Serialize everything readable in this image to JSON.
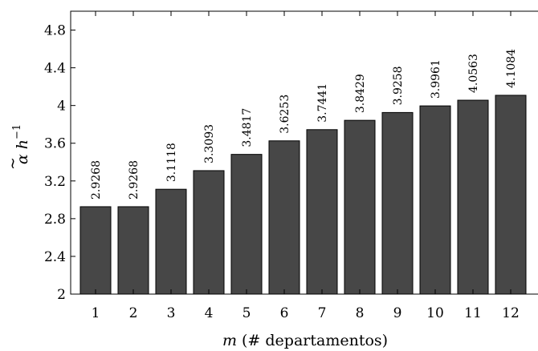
{
  "chart_data": {
    "type": "bar",
    "categories": [
      "1",
      "2",
      "3",
      "4",
      "5",
      "6",
      "7",
      "8",
      "9",
      "10",
      "11",
      "12"
    ],
    "values": [
      2.9268,
      2.9268,
      3.1118,
      3.3093,
      3.4817,
      3.6253,
      3.7441,
      3.8429,
      3.9258,
      3.9961,
      4.0563,
      4.1084
    ],
    "value_labels": [
      "2.9268",
      "2.9268",
      "3.1118",
      "3.3093",
      "3.4817",
      "3.6253",
      "3.7441",
      "3.8429",
      "3.9258",
      "3.9961",
      "4.0563",
      "4.1084"
    ],
    "title": "",
    "xlabel_italic": "m",
    "xlabel_rest": " (# departamentos)",
    "ylabel_alpha": "α",
    "ylabel_tilde": "~",
    "ylabel_h": "h",
    "ylabel_exp": "−1",
    "ylim": [
      2,
      5
    ],
    "yticks": [
      2,
      2.4,
      2.8,
      3.2,
      3.6,
      4,
      4.4,
      4.8
    ],
    "ytick_labels": [
      "2",
      "2.4",
      "2.8",
      "3.2",
      "3.6",
      "4",
      "4.4",
      "4.8"
    ],
    "grid": false,
    "bar_color": "#474747"
  }
}
